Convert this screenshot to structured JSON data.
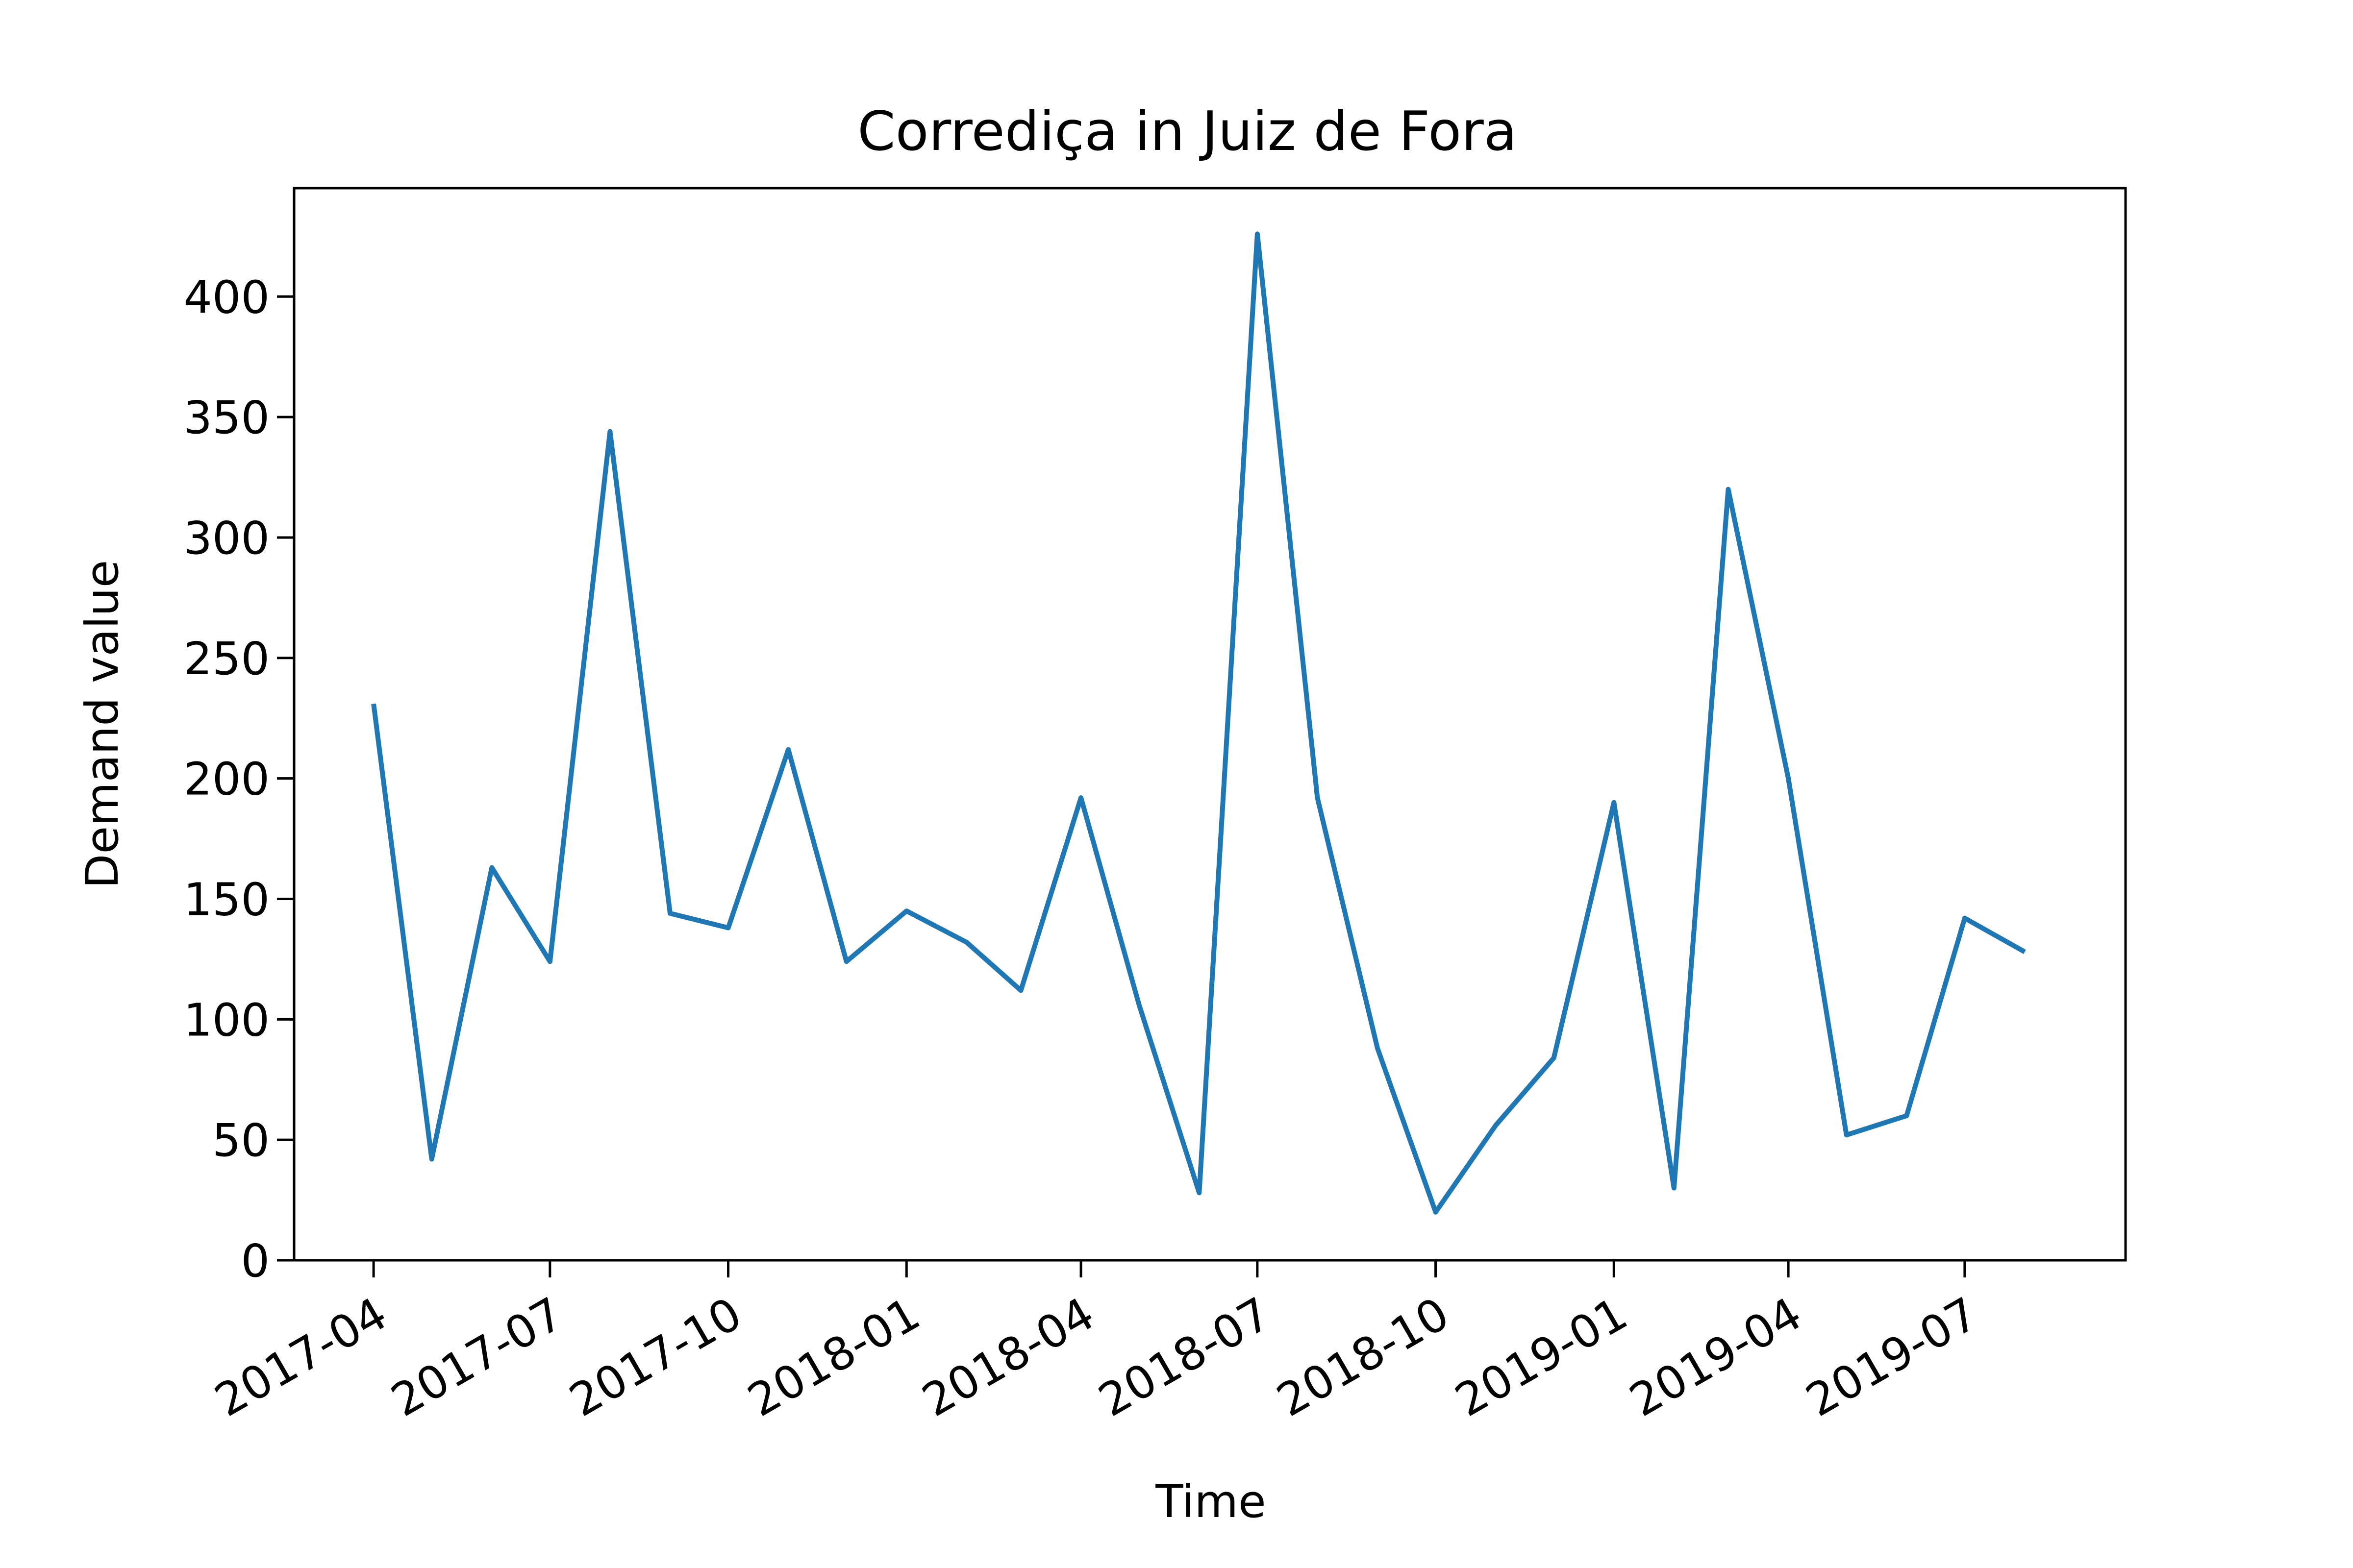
{
  "chart_data": {
    "type": "line",
    "title": "Corrediça in Juiz de Fora",
    "xlabel": "Time",
    "ylabel": "Demand value",
    "color": "#1f77b4",
    "grid": false,
    "legend": "none",
    "ylim": [
      0,
      445
    ],
    "xlim": [
      "2017-02-19",
      "2019-09-22"
    ],
    "yticks": [
      0,
      50,
      100,
      150,
      200,
      250,
      300,
      350,
      400
    ],
    "ytick_labels": [
      "0",
      "50",
      "100",
      "150",
      "200",
      "250",
      "300",
      "350",
      "400"
    ],
    "xticks": [
      "2017-04-01",
      "2017-07-01",
      "2017-10-01",
      "2018-01-01",
      "2018-04-01",
      "2018-07-01",
      "2018-10-01",
      "2019-01-01",
      "2019-04-01",
      "2019-07-01"
    ],
    "xtick_labels": [
      "2017-04",
      "2017-07",
      "2017-10",
      "2018-01",
      "2018-04",
      "2018-07",
      "2018-10",
      "2019-01",
      "2019-04",
      "2019-07"
    ],
    "series": [
      {
        "x": [
          "2017-04-01",
          "2017-05-01",
          "2017-06-01",
          "2017-07-01",
          "2017-08-01",
          "2017-09-01",
          "2017-10-01",
          "2017-11-01",
          "2017-12-01",
          "2018-01-01",
          "2018-02-01",
          "2018-03-01",
          "2018-04-01",
          "2018-05-01",
          "2018-06-01",
          "2018-07-01",
          "2018-08-01",
          "2018-09-01",
          "2018-10-01",
          "2018-11-01",
          "2018-12-01",
          "2019-01-01",
          "2019-02-01",
          "2019-03-01",
          "2019-04-01",
          "2019-05-01",
          "2019-06-01",
          "2019-07-01",
          "2019-08-01"
        ],
        "values": [
          231,
          42,
          163,
          124,
          344,
          144,
          138,
          212,
          124,
          145,
          132,
          112,
          192,
          106,
          28,
          426,
          192,
          88,
          20,
          56,
          84,
          190,
          30,
          320,
          200,
          52,
          60,
          142,
          128
        ]
      }
    ]
  }
}
